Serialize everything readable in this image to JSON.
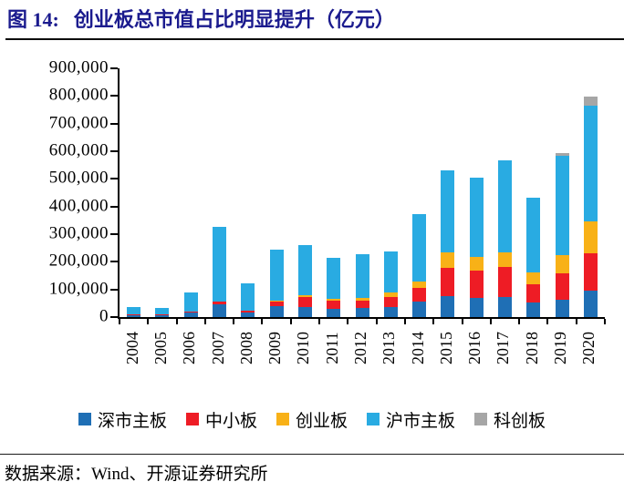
{
  "figure": {
    "label": "图 14:",
    "title": "创业板总市值占比明显提升（亿元）",
    "title_color": "#1b1b8e"
  },
  "source": {
    "text": "数据来源：Wind、开源证券研究所"
  },
  "chart_data": {
    "type": "bar",
    "stacked": true,
    "title": "创业板总市值占比明显提升（亿元）",
    "xlabel": "",
    "ylabel": "",
    "ylim": [
      0,
      900000
    ],
    "ytick_interval": 100000,
    "ytick_labels": [
      "0",
      "100,000",
      "200,000",
      "300,000",
      "400,000",
      "500,000",
      "600,000",
      "700,000",
      "800,000",
      "900,000"
    ],
    "grid": false,
    "legend_position": "bottom",
    "categories": [
      "2004",
      "2005",
      "2006",
      "2007",
      "2008",
      "2009",
      "2010",
      "2011",
      "2012",
      "2013",
      "2014",
      "2015",
      "2016",
      "2017",
      "2018",
      "2019",
      "2020"
    ],
    "series": [
      {
        "name": "深市主板",
        "color": "#1F6FB5",
        "values": [
          11000,
          9000,
          16000,
          46000,
          18000,
          39000,
          36000,
          31000,
          32000,
          36000,
          56000,
          77000,
          70000,
          74000,
          53000,
          63000,
          95000
        ]
      },
      {
        "name": "中小板",
        "color": "#EE1C25",
        "values": [
          400,
          500,
          2500,
          11000,
          6000,
          17000,
          35000,
          27000,
          29000,
          37000,
          51000,
          102000,
          97000,
          107000,
          66000,
          94000,
          135000
        ]
      },
      {
        "name": "创业板",
        "color": "#F8B117",
        "values": [
          0,
          0,
          0,
          0,
          0,
          2000,
          7000,
          7000,
          9000,
          15000,
          22000,
          56000,
          52000,
          54000,
          42000,
          66000,
          115000
        ]
      },
      {
        "name": "沪市主板",
        "color": "#29ABE2",
        "values": [
          26000,
          23000,
          72000,
          270000,
          97000,
          185000,
          184000,
          148000,
          159000,
          151000,
          244000,
          296000,
          286000,
          331000,
          270000,
          360000,
          421000
        ]
      },
      {
        "name": "科创板",
        "color": "#A6A6A6",
        "values": [
          0,
          0,
          0,
          0,
          0,
          0,
          0,
          0,
          0,
          0,
          0,
          0,
          0,
          0,
          0,
          9000,
          33000
        ]
      }
    ]
  }
}
